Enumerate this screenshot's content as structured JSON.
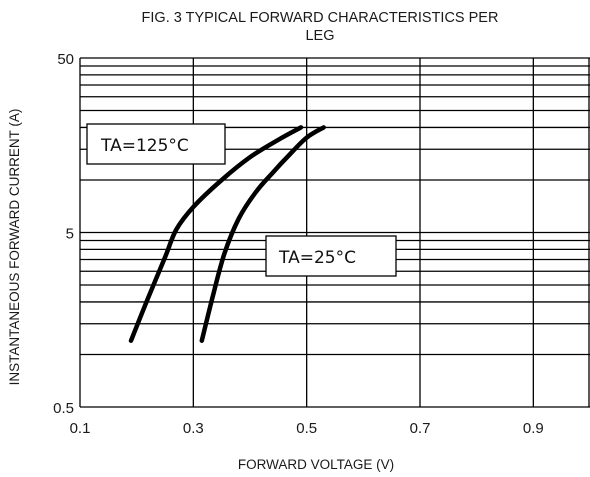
{
  "chart_data": {
    "type": "line",
    "title_line1": "FIG. 3 TYPICAL FORWARD CHARACTERISTICS PER",
    "title_line2": "LEG",
    "xlabel": "FORWARD VOLTAGE (V)",
    "ylabel": "INSTANTANEOUS FORWARD CURRENT (A)",
    "xlim": [
      0.1,
      1.0
    ],
    "ylim": [
      0.5,
      50
    ],
    "yscale": "log",
    "grid": true,
    "x_ticks": [
      0.1,
      0.3,
      0.5,
      0.7,
      0.9
    ],
    "x_tick_labels": [
      "0.1",
      "0.3",
      "0.5",
      "0.7",
      "0.9"
    ],
    "y_ticks": [
      0.5,
      5,
      50
    ],
    "y_tick_labels": [
      "0.5",
      "5",
      "50"
    ],
    "series": [
      {
        "name": "TA=125°C",
        "points": [
          [
            0.19,
            1.2
          ],
          [
            0.22,
            2.1
          ],
          [
            0.25,
            3.6
          ],
          [
            0.27,
            5.2
          ],
          [
            0.3,
            7.0
          ],
          [
            0.35,
            10.0
          ],
          [
            0.4,
            13.5
          ],
          [
            0.45,
            17.0
          ],
          [
            0.49,
            20.0
          ]
        ]
      },
      {
        "name": "TA=25°C",
        "points": [
          [
            0.315,
            1.2
          ],
          [
            0.335,
            2.2
          ],
          [
            0.355,
            3.8
          ],
          [
            0.38,
            6.0
          ],
          [
            0.41,
            8.5
          ],
          [
            0.44,
            11.0
          ],
          [
            0.47,
            14.0
          ],
          [
            0.5,
            17.5
          ],
          [
            0.53,
            20.0
          ]
        ]
      }
    ],
    "annotations": [
      {
        "text": "TA=125°C",
        "series": 0
      },
      {
        "text": "TA=25°C",
        "series": 1
      }
    ]
  }
}
